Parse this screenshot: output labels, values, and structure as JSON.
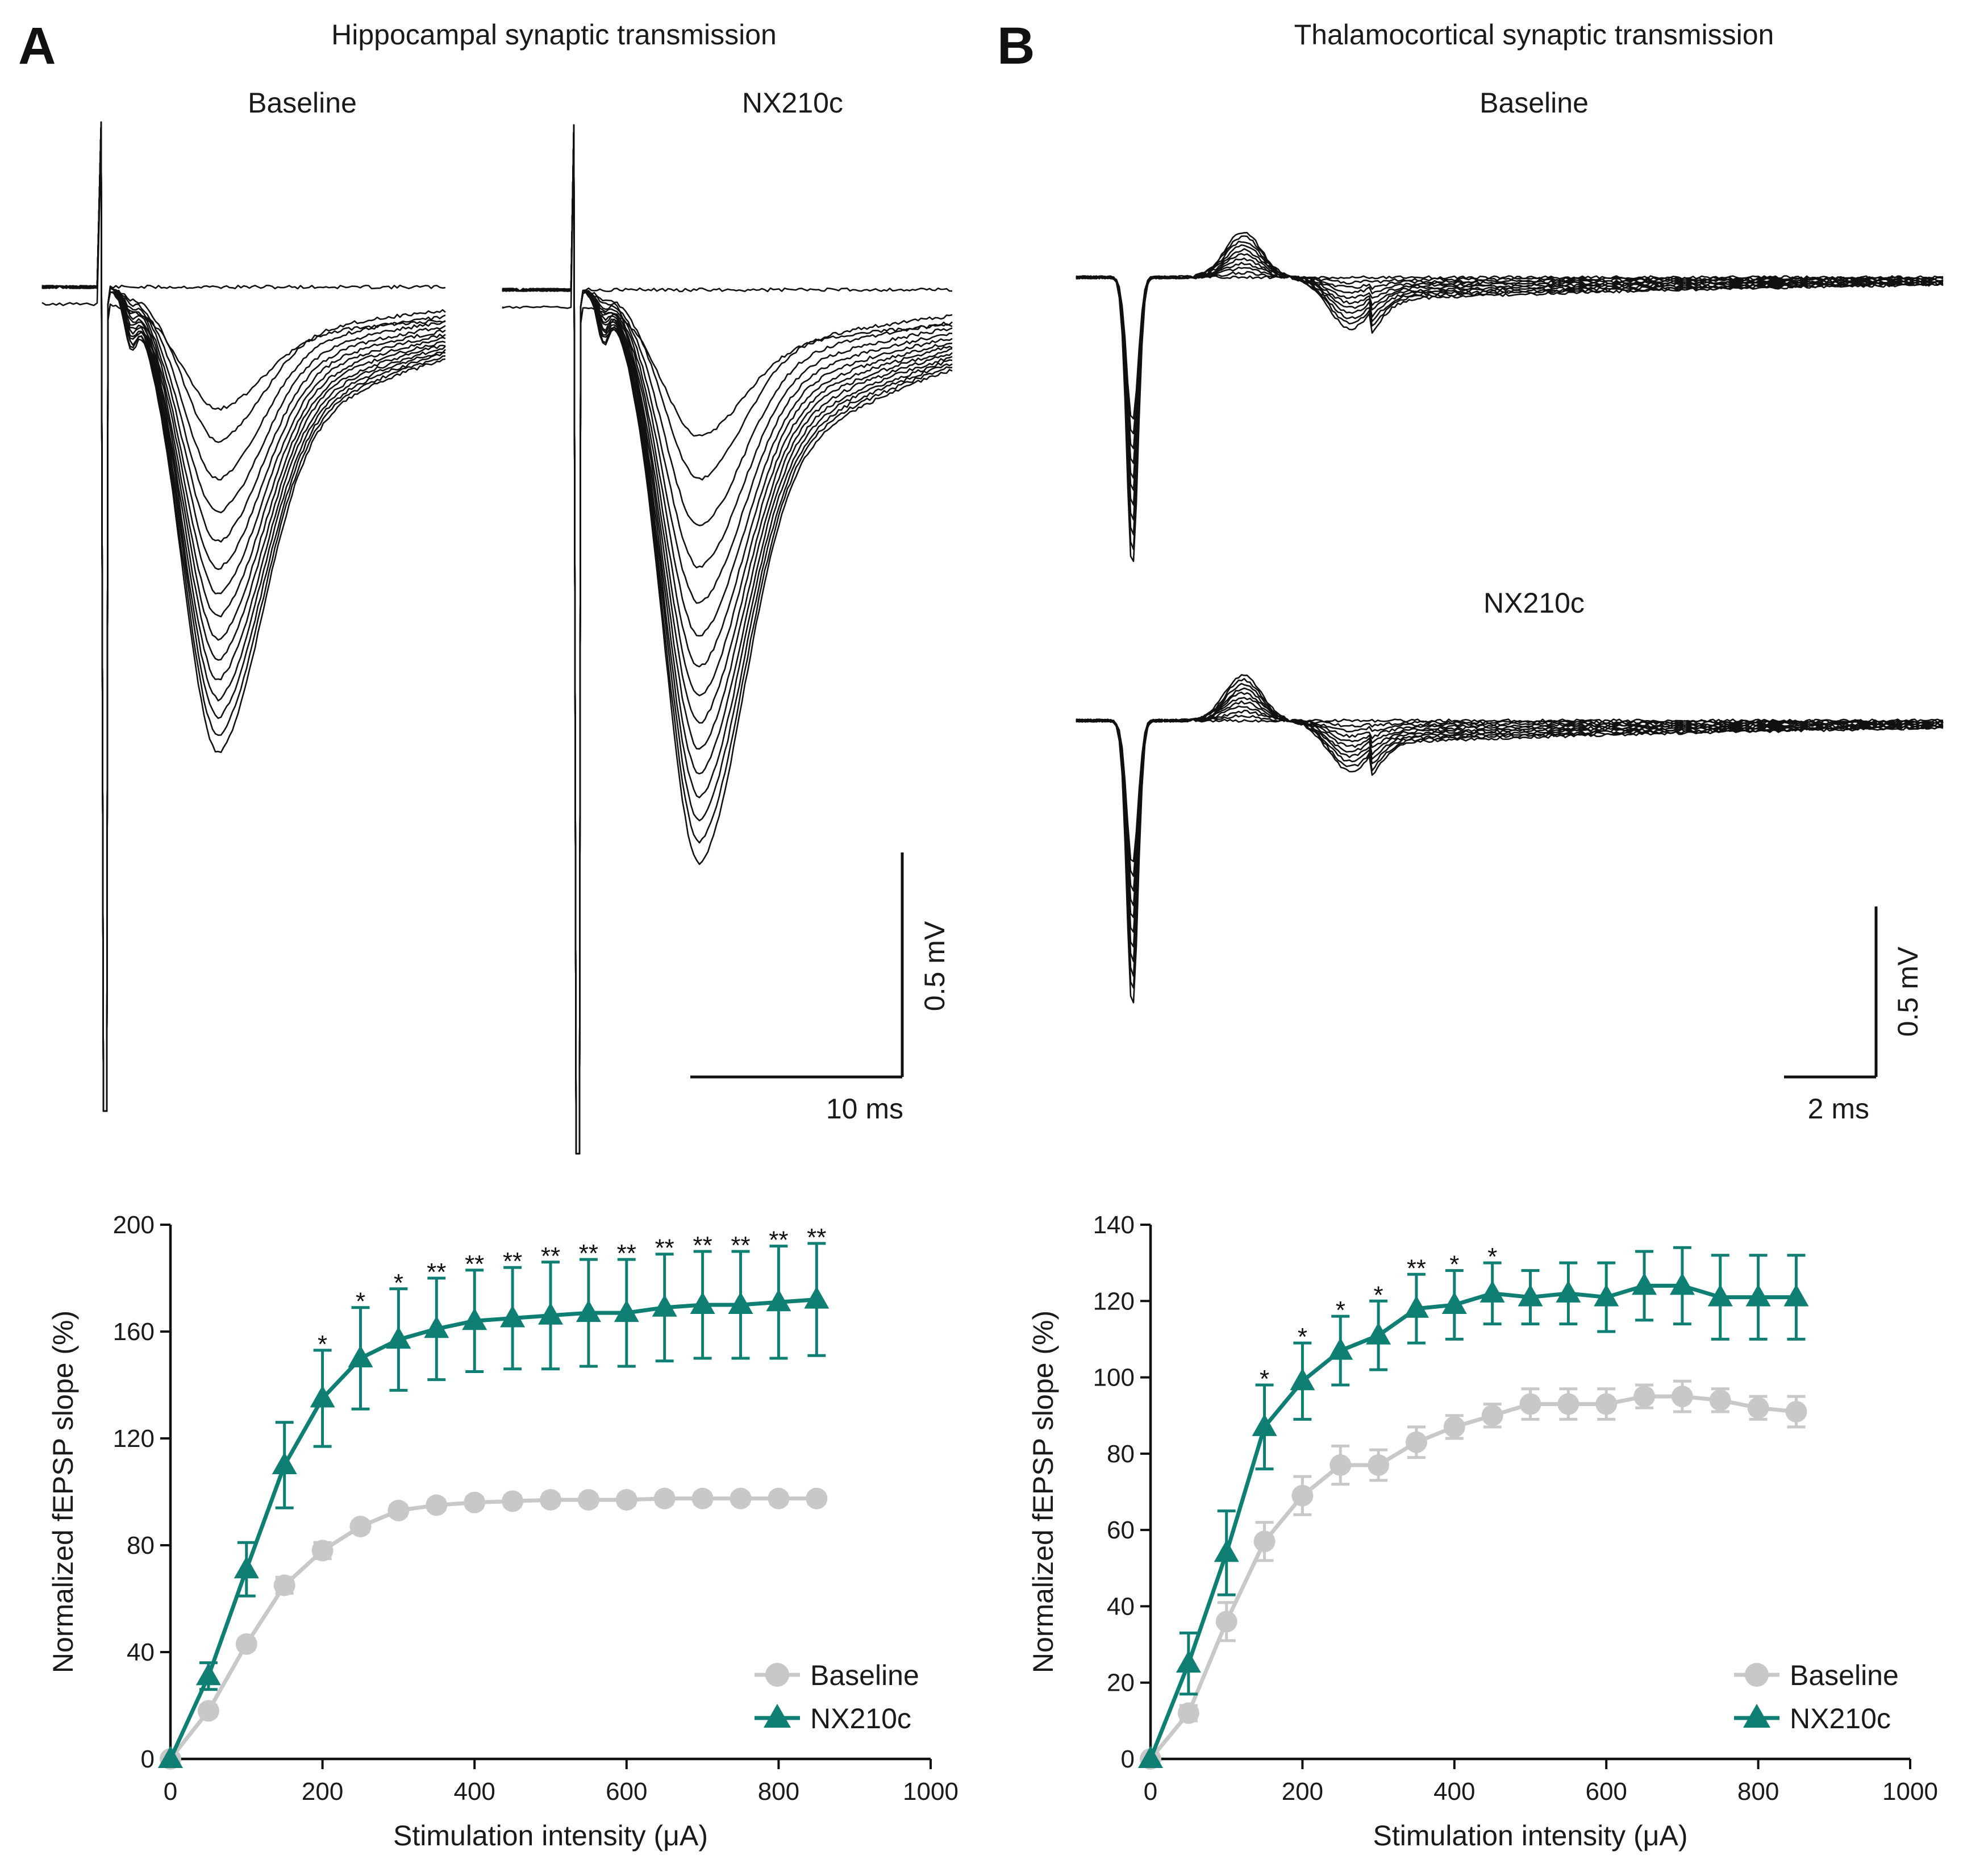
{
  "panels": {
    "A": {
      "letter": "A",
      "title": "Hippocampal synaptic transmission",
      "left_label": "Baseline",
      "right_label": "NX210c",
      "scale_v": "0.5 mV",
      "scale_t": "10 ms"
    },
    "B": {
      "letter": "B",
      "title": "Thalamocortical synaptic transmission",
      "top_label": "Baseline",
      "bottom_label": "NX210c",
      "scale_v": "0.5 mV",
      "scale_t": "2 ms"
    }
  },
  "colors": {
    "baseline": "#c8c8c8",
    "nx210c": "#0f7f74",
    "trace": "#111111"
  },
  "chart_data": [
    {
      "id": "A",
      "type": "line",
      "xlabel": "Stimulation intensity (μA)",
      "ylabel": "Normalized fEPSP slope (%)",
      "xlim": [
        0,
        1000
      ],
      "ylim": [
        0,
        200
      ],
      "xticks": [
        0,
        200,
        400,
        600,
        800,
        1000
      ],
      "yticks": [
        0,
        40,
        80,
        120,
        160,
        200
      ],
      "legend_position": "bottom-right",
      "series": [
        {
          "name": "Baseline",
          "marker": "circle",
          "x": [
            0,
            50,
            100,
            150,
            200,
            250,
            300,
            350,
            400,
            450,
            500,
            550,
            600,
            650,
            700,
            750,
            800,
            850
          ],
          "y": [
            0,
            18,
            43,
            65,
            78,
            87,
            93,
            95,
            96,
            96.5,
            97,
            97,
            97,
            97.5,
            97.5,
            97.5,
            97.5,
            97.5
          ],
          "err": [
            0,
            2,
            2,
            3,
            3,
            2,
            2,
            2,
            2,
            2,
            2,
            2,
            2,
            2,
            2,
            2,
            2,
            2
          ]
        },
        {
          "name": "NX210c",
          "marker": "triangle",
          "x": [
            0,
            50,
            100,
            150,
            200,
            250,
            300,
            350,
            400,
            450,
            500,
            550,
            600,
            650,
            700,
            750,
            800,
            850
          ],
          "y": [
            0,
            31,
            71,
            110,
            135,
            150,
            157,
            161,
            164,
            165,
            166,
            167,
            167,
            169,
            170,
            170,
            171,
            172
          ],
          "err": [
            0,
            5,
            10,
            16,
            18,
            19,
            19,
            19,
            19,
            19,
            20,
            20,
            20,
            20,
            20,
            20,
            21,
            21
          ]
        }
      ],
      "significance": [
        {
          "x": 200,
          "label": "*"
        },
        {
          "x": 250,
          "label": "*"
        },
        {
          "x": 300,
          "label": "*"
        },
        {
          "x": 350,
          "label": "**"
        },
        {
          "x": 400,
          "label": "**"
        },
        {
          "x": 450,
          "label": "**"
        },
        {
          "x": 500,
          "label": "**"
        },
        {
          "x": 550,
          "label": "**"
        },
        {
          "x": 600,
          "label": "**"
        },
        {
          "x": 650,
          "label": "**"
        },
        {
          "x": 700,
          "label": "**"
        },
        {
          "x": 750,
          "label": "**"
        },
        {
          "x": 800,
          "label": "**"
        },
        {
          "x": 850,
          "label": "**"
        }
      ]
    },
    {
      "id": "B",
      "type": "line",
      "xlabel": "Stimulation intensity (μA)",
      "ylabel": "Normalized fEPSP slope (%)",
      "xlim": [
        0,
        1000
      ],
      "ylim": [
        0,
        140
      ],
      "xticks": [
        0,
        200,
        400,
        600,
        800,
        1000
      ],
      "yticks": [
        0,
        20,
        40,
        60,
        80,
        100,
        120,
        140
      ],
      "legend_position": "bottom-right",
      "series": [
        {
          "name": "Baseline",
          "marker": "circle",
          "x": [
            0,
            50,
            100,
            150,
            200,
            250,
            300,
            350,
            400,
            450,
            500,
            550,
            600,
            650,
            700,
            750,
            800,
            850
          ],
          "y": [
            0,
            12,
            36,
            57,
            69,
            77,
            77,
            83,
            87,
            90,
            93,
            93,
            93,
            95,
            95,
            94,
            92,
            91
          ],
          "err": [
            0,
            2,
            5,
            5,
            5,
            5,
            4,
            4,
            3,
            3,
            4,
            4,
            4,
            3,
            4,
            3,
            3,
            4
          ]
        },
        {
          "name": "NX210c",
          "marker": "triangle",
          "x": [
            0,
            50,
            100,
            150,
            200,
            250,
            300,
            350,
            400,
            450,
            500,
            550,
            600,
            650,
            700,
            750,
            800,
            850
          ],
          "y": [
            0,
            25,
            54,
            87,
            99,
            107,
            111,
            118,
            119,
            122,
            121,
            122,
            121,
            124,
            124,
            121,
            121,
            121
          ],
          "err": [
            0,
            8,
            11,
            11,
            10,
            9,
            9,
            9,
            9,
            8,
            7,
            8,
            9,
            9,
            10,
            11,
            11,
            11
          ]
        }
      ],
      "significance": [
        {
          "x": 150,
          "label": "*"
        },
        {
          "x": 200,
          "label": "*"
        },
        {
          "x": 250,
          "label": "*"
        },
        {
          "x": 300,
          "label": "*"
        },
        {
          "x": 350,
          "label": "**"
        },
        {
          "x": 400,
          "label": "*"
        },
        {
          "x": 450,
          "label": "*"
        }
      ]
    }
  ]
}
